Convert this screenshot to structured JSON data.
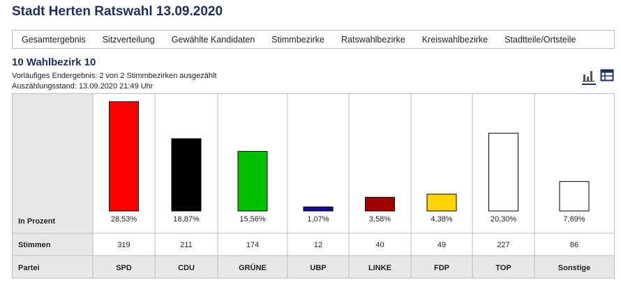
{
  "header": {
    "title": "Stadt Herten Ratswahl 13.09.2020"
  },
  "nav": {
    "tabs": [
      "Gesamtergebnis",
      "Sitzverteilung",
      "Gewählte Kandidaten",
      "Stimmbezirke",
      "Ratswahlbezirke",
      "Kreiswahlbezirke",
      "Stadtteile/Ortsteile"
    ]
  },
  "section": {
    "title": "10 Wahlbezirk 10",
    "status": "Vorläufiges Endergebnis: 2 von 2 Stimmbezirken ausgezählt",
    "timestamp": "Auszählungsstand: 13.09.2020 21:49 Uhr"
  },
  "view_toggle": {
    "icons": [
      "bar-chart-icon",
      "table-icon"
    ],
    "active": "bar-chart-icon"
  },
  "chart_data": {
    "type": "bar",
    "row_labels": {
      "percent": "In Prozent",
      "votes": "Stimmen",
      "party": "Partei"
    },
    "categories": [
      "SPD",
      "CDU",
      "GRÜNE",
      "UBP",
      "LINKE",
      "FDP",
      "TOP",
      "Sonstige"
    ],
    "values": [
      28.53,
      18.87,
      15.56,
      1.07,
      3.58,
      4.38,
      20.3,
      7.69
    ],
    "percent_labels": [
      "28,53%",
      "18,87%",
      "15,56%",
      "1,07%",
      "3,58%",
      "4,38%",
      "20,30%",
      "7,69%"
    ],
    "votes": [
      "319",
      "211",
      "174",
      "12",
      "40",
      "49",
      "227",
      "86"
    ],
    "colors": [
      "#ff0000",
      "#000000",
      "#00c000",
      "#1a0a8c",
      "#a00000",
      "#ffd400",
      "#ffffff",
      "#ffffff"
    ],
    "legend": "none",
    "grid": false
  },
  "theme": {
    "accent": "#1e2f5e",
    "label_column_bg": "#e8e8e8",
    "border": "#bdbdbd"
  }
}
